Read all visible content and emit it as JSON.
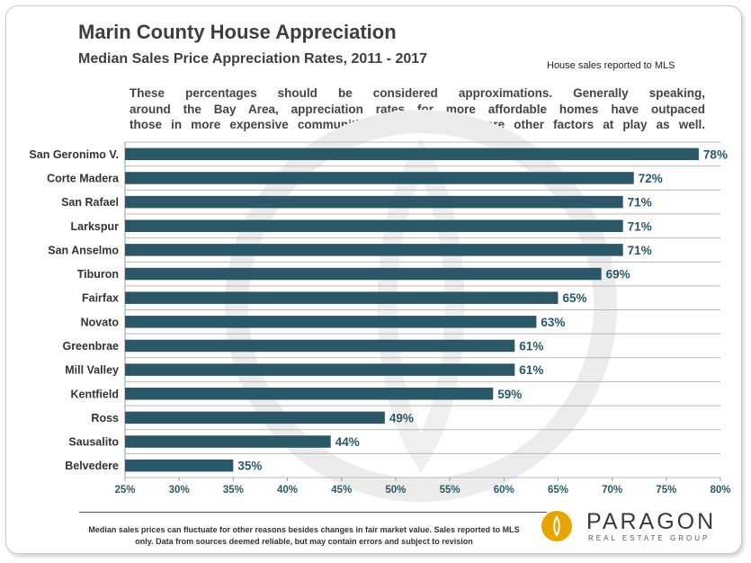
{
  "header": {
    "title": "Marin County House Appreciation",
    "subtitle": "Median Sales Price Appreciation Rates, 2011 - 2017",
    "source_note": "House sales reported to MLS"
  },
  "description": {
    "line1": "These percentages should be considered approximations. Generally speaking,",
    "line2": "around the Bay Area, appreciation rates for more affordable homes have outpaced",
    "line3": "those in more expensive communities – though there are other factors at play as well."
  },
  "chart_data": {
    "type": "bar",
    "orientation": "horizontal",
    "title": "Median Sales Price Appreciation Rates, 2011 - 2017",
    "xlabel": "",
    "ylabel": "",
    "categories": [
      "San Geronimo V.",
      "Corte Madera",
      "San Rafael",
      "Larkspur",
      "San Anselmo",
      "Tiburon",
      "Fairfax",
      "Novato",
      "Greenbrae",
      "Mill Valley",
      "Kentfield",
      "Ross",
      "Sausalito",
      "Belvedere"
    ],
    "values": [
      78,
      72,
      71,
      71,
      71,
      69,
      65,
      63,
      61,
      61,
      59,
      49,
      44,
      35
    ],
    "value_labels": [
      "78%",
      "72%",
      "71%",
      "71%",
      "71%",
      "69%",
      "65%",
      "63%",
      "61%",
      "61%",
      "59%",
      "49%",
      "44%",
      "35%"
    ],
    "xlim": [
      25,
      80
    ],
    "x_ticks": [
      25,
      30,
      35,
      40,
      45,
      50,
      55,
      60,
      65,
      70,
      75,
      80
    ],
    "x_tick_labels": [
      "25%",
      "30%",
      "35%",
      "40%",
      "45%",
      "50%",
      "55%",
      "60%",
      "65%",
      "70%",
      "75%",
      "80%"
    ],
    "grid": "horizontal lines between categories",
    "legend": "none",
    "bar_color": "#2b5766",
    "label_color": "#2b5766"
  },
  "footer": {
    "disclaimer": "Median sales prices can fluctuate for other reasons besides changes in fair market value. Sales reported to MLS only. Data from sources deemed reliable, but may contain errors and subject to revision"
  },
  "logo": {
    "name": "PARAGON",
    "tagline": "REAL ESTATE GROUP",
    "icon": "paragon-logo-icon",
    "accent": "#e8a400"
  }
}
